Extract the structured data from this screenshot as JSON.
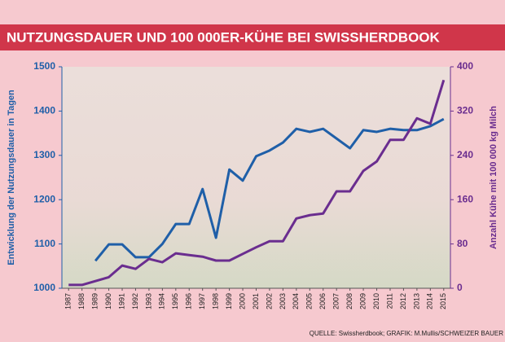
{
  "chart_data": {
    "type": "line",
    "title": "NUTZUNGSDAUER UND 100 000ER-KÜHE BEI SWISSHERDBOOK",
    "ylabel": "Entwicklung der Nutzungsdauer in Tagen",
    "y2label": "Anzahl Kühe mit 100 000 kg Milch",
    "source": "QUELLE: Swissherdbook; GRAFIK: M.Mullis/SCHWEIZER BAUER",
    "categories": [
      "1987",
      "1988",
      "1989",
      "1990",
      "1991",
      "1992",
      "1993",
      "1994",
      "1995",
      "1996",
      "1997",
      "1998",
      "1999",
      "2000",
      "2001",
      "2002",
      "2003",
      "2004",
      "2005",
      "2006",
      "2007",
      "2008",
      "2009",
      "2010",
      "2011",
      "2012",
      "2013",
      "2014",
      "2015"
    ],
    "ylim": [
      1000,
      1500
    ],
    "yticks": [
      1000,
      1100,
      1200,
      1300,
      1400,
      1500
    ],
    "y2lim": [
      0,
      400
    ],
    "y2ticks": [
      0,
      80,
      160,
      240,
      320,
      400
    ],
    "series": [
      {
        "name": "Nutzungsdauer",
        "color": "#1f5fa8",
        "axis": "y",
        "values": [
          null,
          null,
          1062,
          1099,
          1099,
          1070,
          1070,
          1100,
          1145,
          1145,
          1224,
          1114,
          1268,
          1243,
          1298,
          1311,
          1329,
          1360,
          1353,
          1360,
          1338,
          1316,
          1357,
          1353,
          1360,
          1357,
          1357,
          1366,
          1382
        ]
      },
      {
        "name": "100 000er-Kühe",
        "color": "#6a2d8f",
        "axis": "y2",
        "values": [
          6,
          6,
          13,
          20,
          41,
          35,
          53,
          47,
          63,
          60,
          57,
          50,
          50,
          62,
          74,
          85,
          85,
          126,
          132,
          135,
          175,
          175,
          212,
          229,
          268,
          268,
          307,
          297,
          376
        ]
      }
    ]
  }
}
